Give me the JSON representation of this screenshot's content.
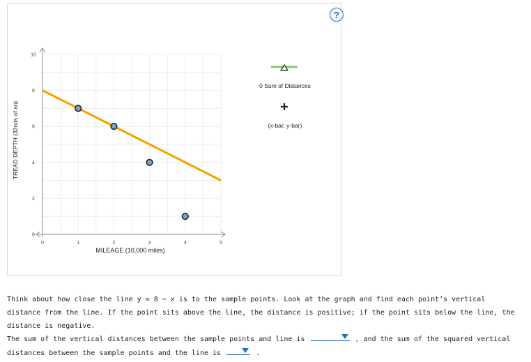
{
  "help": {
    "label": "?"
  },
  "chart_data": {
    "type": "scatter",
    "xlabel": "MILEAGE (10,000 miles)",
    "ylabel": "TREAD DEPTH (32nds of an)",
    "xlim": [
      0,
      5
    ],
    "ylim": [
      0,
      10
    ],
    "x_ticks": [
      "0",
      "1",
      "2",
      "3",
      "4",
      "5"
    ],
    "y_ticks": [
      "0",
      "2",
      "4",
      "6",
      "8",
      "10"
    ],
    "points": [
      {
        "x": 1,
        "y": 7
      },
      {
        "x": 2,
        "y": 6
      },
      {
        "x": 3,
        "y": 4
      },
      {
        "x": 4,
        "y": 1
      }
    ],
    "line": {
      "equation": "y = 8 - x",
      "slope": -1,
      "intercept": 8,
      "color": "#f5a000"
    },
    "point_color": "#7aa3cc",
    "grid": true
  },
  "legend": {
    "sum_label": "0 Sum of Distances",
    "mean_label": "(x-bar, y-bar)",
    "sum_color": "#7ccc63"
  },
  "question": {
    "text": "Think about how close the line y = 8 − x is to the sample points. Look at the graph and find each point’s vertical distance from the line. If the point sits above the line, the distance is positive; if the point sits below the line, the distance is negative.",
    "answer_part1": "The sum of the vertical distances between the sample points and line is",
    "answer_part2": ", and the sum of the squared vertical distances between the sample points and the line is",
    "answer_end": "."
  }
}
